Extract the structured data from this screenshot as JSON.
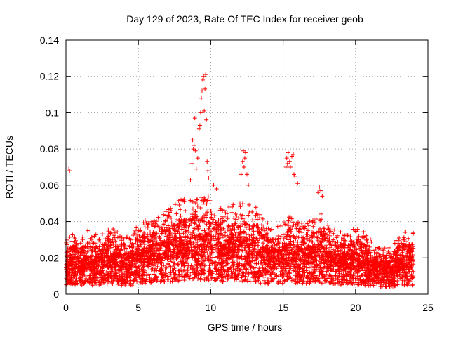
{
  "chart_data": {
    "type": "scatter",
    "title": "Day 129 of 2023, Rate Of TEC Index for receiver geob",
    "xlabel": "GPS time / hours",
    "ylabel": "ROTI / TECUs",
    "xlim": [
      0,
      25
    ],
    "ylim": [
      0,
      0.14
    ],
    "xticks": [
      "0",
      "5",
      "10",
      "15",
      "20",
      "25"
    ],
    "yticks": [
      "0",
      "0.02",
      "0.04",
      "0.06",
      "0.08",
      "0.1",
      "0.12",
      "0.14"
    ],
    "grid": true,
    "marker": "plus",
    "series_color": "#ff0000",
    "profile": [
      [
        0.0,
        0.012,
        0.03
      ],
      [
        0.5,
        0.014,
        0.032
      ],
      [
        1.0,
        0.013,
        0.03
      ],
      [
        1.5,
        0.014,
        0.034
      ],
      [
        2.0,
        0.013,
        0.032
      ],
      [
        2.5,
        0.014,
        0.033
      ],
      [
        3.0,
        0.015,
        0.036
      ],
      [
        3.5,
        0.014,
        0.034
      ],
      [
        4.0,
        0.013,
        0.03
      ],
      [
        4.5,
        0.014,
        0.033
      ],
      [
        5.0,
        0.016,
        0.038
      ],
      [
        5.5,
        0.017,
        0.04
      ],
      [
        6.0,
        0.018,
        0.04
      ],
      [
        6.5,
        0.018,
        0.042
      ],
      [
        7.0,
        0.019,
        0.045
      ],
      [
        7.5,
        0.02,
        0.048
      ],
      [
        8.0,
        0.021,
        0.052
      ],
      [
        8.5,
        0.02,
        0.05
      ],
      [
        9.0,
        0.021,
        0.052
      ],
      [
        9.5,
        0.022,
        0.055
      ],
      [
        10.0,
        0.021,
        0.052
      ],
      [
        10.5,
        0.02,
        0.048
      ],
      [
        11.0,
        0.019,
        0.046
      ],
      [
        11.5,
        0.02,
        0.048
      ],
      [
        12.0,
        0.021,
        0.052
      ],
      [
        12.5,
        0.02,
        0.05
      ],
      [
        13.0,
        0.019,
        0.048
      ],
      [
        13.5,
        0.017,
        0.042
      ],
      [
        14.0,
        0.016,
        0.038
      ],
      [
        14.5,
        0.016,
        0.036
      ],
      [
        15.0,
        0.017,
        0.04
      ],
      [
        15.5,
        0.018,
        0.042
      ],
      [
        16.0,
        0.017,
        0.04
      ],
      [
        16.5,
        0.016,
        0.038
      ],
      [
        17.0,
        0.017,
        0.04
      ],
      [
        17.5,
        0.018,
        0.045
      ],
      [
        18.0,
        0.016,
        0.04
      ],
      [
        18.5,
        0.015,
        0.036
      ],
      [
        19.0,
        0.014,
        0.034
      ],
      [
        19.5,
        0.014,
        0.032
      ],
      [
        20.0,
        0.015,
        0.036
      ],
      [
        20.5,
        0.014,
        0.034
      ],
      [
        21.0,
        0.013,
        0.03
      ],
      [
        21.5,
        0.011,
        0.026
      ],
      [
        22.0,
        0.011,
        0.025
      ],
      [
        22.5,
        0.012,
        0.028
      ],
      [
        23.0,
        0.013,
        0.03
      ],
      [
        23.5,
        0.014,
        0.034
      ],
      [
        24.0,
        0.014,
        0.034
      ]
    ],
    "highlights": [
      [
        0.2,
        0.069
      ],
      [
        0.25,
        0.068
      ],
      [
        8.6,
        0.063
      ],
      [
        8.7,
        0.072
      ],
      [
        8.75,
        0.085
      ],
      [
        8.8,
        0.08
      ],
      [
        8.85,
        0.082
      ],
      [
        8.9,
        0.097
      ],
      [
        8.95,
        0.079
      ],
      [
        9.0,
        0.069
      ],
      [
        9.1,
        0.075
      ],
      [
        9.2,
        0.091
      ],
      [
        9.25,
        0.093
      ],
      [
        9.3,
        0.1
      ],
      [
        9.35,
        0.108
      ],
      [
        9.4,
        0.112
      ],
      [
        9.45,
        0.118
      ],
      [
        9.5,
        0.12
      ],
      [
        9.55,
        0.101
      ],
      [
        9.6,
        0.113
      ],
      [
        9.65,
        0.121
      ],
      [
        9.7,
        0.096
      ],
      [
        9.75,
        0.073
      ],
      [
        9.8,
        0.068
      ],
      [
        9.85,
        0.064
      ],
      [
        10.2,
        0.06
      ],
      [
        10.4,
        0.058
      ],
      [
        12.1,
        0.066
      ],
      [
        12.2,
        0.073
      ],
      [
        12.25,
        0.079
      ],
      [
        12.3,
        0.07
      ],
      [
        12.35,
        0.075
      ],
      [
        12.4,
        0.078
      ],
      [
        12.5,
        0.066
      ],
      [
        12.6,
        0.06
      ],
      [
        15.2,
        0.07
      ],
      [
        15.25,
        0.075
      ],
      [
        15.3,
        0.072
      ],
      [
        15.35,
        0.078
      ],
      [
        15.45,
        0.073
      ],
      [
        15.5,
        0.07
      ],
      [
        15.6,
        0.076
      ],
      [
        15.7,
        0.077
      ],
      [
        15.75,
        0.066
      ],
      [
        15.8,
        0.065
      ],
      [
        16.0,
        0.061
      ],
      [
        17.4,
        0.056
      ],
      [
        17.5,
        0.059
      ],
      [
        17.6,
        0.057
      ],
      [
        17.7,
        0.054
      ]
    ]
  }
}
